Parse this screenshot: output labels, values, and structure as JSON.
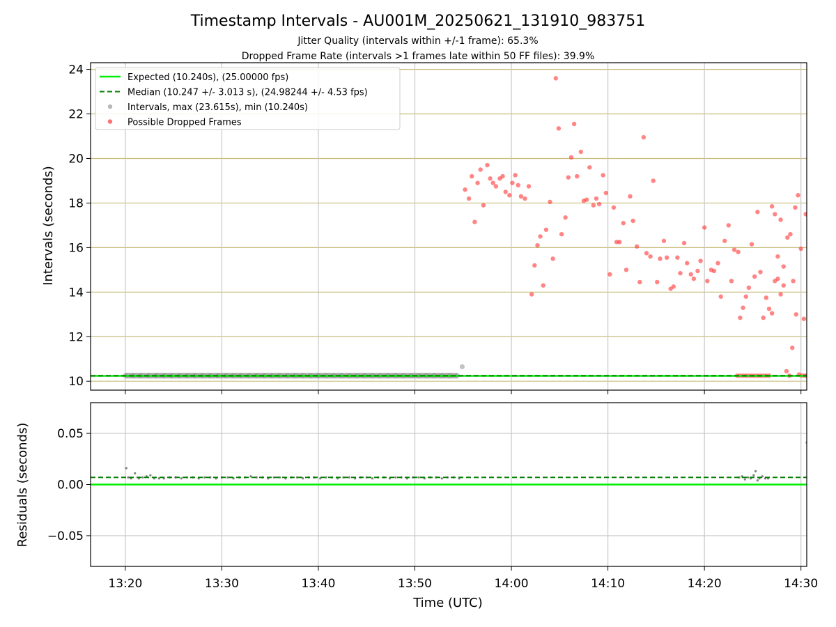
{
  "chart_data": {
    "type": "scatter",
    "title": "Timestamp Intervals - AU001M_20250621_131910_983751",
    "subtitle_lines": [
      "Jitter Quality (intervals within +/-1 frame): 65.3%",
      "Dropped Frame Rate (intervals >1 frames late within 50 FF files): 39.9%"
    ],
    "x_axis": {
      "label": "Time (UTC)",
      "unit": "minutes since 13:00 UTC",
      "range": [
        16.4,
        90.6
      ],
      "ticks": [
        {
          "value": 20,
          "label": "13:20"
        },
        {
          "value": 30,
          "label": "13:30"
        },
        {
          "value": 40,
          "label": "13:40"
        },
        {
          "value": 50,
          "label": "13:50"
        },
        {
          "value": 60,
          "label": "14:00"
        },
        {
          "value": 70,
          "label": "14:10"
        },
        {
          "value": 80,
          "label": "14:20"
        },
        {
          "value": 90,
          "label": "14:30"
        }
      ]
    },
    "panels": [
      {
        "name": "intervals",
        "ylabel": "Intervals (seconds)",
        "ylim": [
          9.6,
          24.3
        ],
        "yticks": [
          {
            "value": 10,
            "label": "10"
          },
          {
            "value": 12,
            "label": "12"
          },
          {
            "value": 14,
            "label": "14"
          },
          {
            "value": 16,
            "label": "16"
          },
          {
            "value": 18,
            "label": "18"
          },
          {
            "value": 20,
            "label": "20"
          },
          {
            "value": 22,
            "label": "22"
          },
          {
            "value": 24,
            "label": "24"
          }
        ],
        "grid": true,
        "grid_color": "#c8bd7a",
        "legend": {
          "placement": "top-left",
          "entries": [
            {
              "label": "Expected (10.240s), (25.00000 fps)",
              "style": "line",
              "color": "#00ee00"
            },
            {
              "label": "Median (10.247 +/- 3.013 s), (24.98244 +/- 4.53 fps)",
              "style": "dashed",
              "color": "#008000"
            },
            {
              "label": "Intervals, max (23.615s), min (10.240s)",
              "style": "dot",
              "color": "#999999"
            },
            {
              "label": "Possible Dropped Frames",
              "style": "dot",
              "color": "#ff3333"
            }
          ]
        },
        "expected_line": {
          "y": 10.24,
          "color": "#00ee00"
        },
        "median_line": {
          "y": 10.247,
          "color": "#008000"
        },
        "series": [
          {
            "name": "Intervals",
            "color": "#999999",
            "x": [
              20.0,
              20.8,
              21.6,
              22.4,
              23.2,
              24.0,
              24.8,
              25.6,
              26.4,
              27.2,
              28.0,
              28.8,
              29.6,
              30.4,
              31.2,
              32.0,
              32.8,
              33.6,
              34.4,
              35.2,
              36.0,
              36.8,
              37.6,
              38.4,
              39.2,
              40.0,
              40.8,
              41.6,
              42.4,
              43.2,
              44.0,
              44.8,
              45.6,
              46.4,
              47.2,
              48.0,
              48.8,
              49.6,
              50.4,
              51.2,
              52.0,
              52.8,
              53.6,
              54.4,
              54.9
            ],
            "y": [
              10.25,
              10.25,
              10.25,
              10.25,
              10.25,
              10.25,
              10.25,
              10.25,
              10.25,
              10.25,
              10.25,
              10.25,
              10.25,
              10.25,
              10.25,
              10.25,
              10.25,
              10.25,
              10.25,
              10.25,
              10.25,
              10.25,
              10.25,
              10.25,
              10.25,
              10.25,
              10.25,
              10.25,
              10.25,
              10.25,
              10.25,
              10.25,
              10.25,
              10.25,
              10.25,
              10.25,
              10.25,
              10.25,
              10.25,
              10.25,
              10.25,
              10.25,
              10.25,
              10.25,
              10.65
            ]
          },
          {
            "name": "Possible Dropped Frames",
            "color": "#ff3333",
            "x": [
              55.2,
              55.6,
              55.9,
              56.2,
              56.5,
              56.8,
              57.1,
              57.5,
              57.8,
              58.1,
              58.4,
              58.8,
              59.1,
              59.4,
              59.8,
              60.1,
              60.4,
              60.7,
              61.0,
              61.4,
              61.8,
              62.1,
              62.4,
              62.7,
              63.0,
              63.3,
              63.6,
              64.0,
              64.3,
              64.6,
              64.9,
              65.2,
              65.6,
              65.9,
              66.2,
              66.5,
              66.8,
              67.2,
              67.5,
              67.8,
              68.1,
              68.5,
              68.8,
              69.1,
              69.5,
              69.8,
              70.2,
              70.6,
              70.9,
              71.2,
              71.6,
              71.9,
              72.3,
              72.6,
              73.0,
              73.3,
              73.7,
              74.0,
              74.4,
              74.7,
              75.1,
              75.4,
              75.8,
              76.1,
              76.5,
              76.8,
              77.2,
              77.5,
              77.9,
              78.2,
              78.6,
              78.9,
              79.3,
              79.6,
              80.0,
              80.3,
              80.7,
              81.0,
              81.4,
              81.7,
              82.1,
              82.5,
              82.8,
              83.1,
              83.5,
              83.7,
              84.0,
              84.3,
              84.6,
              84.9,
              85.2,
              85.5,
              85.8,
              86.1,
              86.4,
              86.7,
              87.0,
              87.3,
              87.6,
              87.9,
              88.2,
              88.5,
              88.8,
              89.1,
              89.4,
              89.7,
              90.0,
              90.3,
              90.5
            ],
            "y": [
              18.6,
              18.2,
              19.2,
              17.15,
              18.9,
              19.5,
              17.9,
              19.7,
              19.1,
              18.9,
              18.75,
              19.1,
              19.2,
              18.5,
              18.35,
              18.9,
              19.25,
              18.8,
              18.3,
              18.2,
              18.75,
              13.9,
              15.2,
              16.1,
              16.5,
              14.3,
              16.8,
              18.05,
              15.5,
              23.6,
              21.35,
              16.6,
              17.35,
              19.15,
              20.05,
              21.55,
              19.2,
              20.3,
              18.1,
              18.15,
              19.6,
              17.9,
              18.2,
              17.95,
              19.25,
              18.45,
              14.8,
              17.8,
              16.25,
              16.25,
              17.1,
              15.0,
              18.3,
              17.2,
              16.05,
              14.45,
              20.95,
              15.75,
              15.6,
              19.0,
              14.45,
              15.5,
              16.3,
              15.55,
              14.15,
              14.25,
              15.55,
              14.85,
              16.2,
              15.3,
              14.8,
              14.6,
              14.95,
              15.4,
              16.9,
              14.5,
              15.0,
              14.95,
              15.3,
              13.8,
              16.3,
              17.0,
              14.5,
              15.9,
              15.8,
              12.85,
              13.3,
              13.8,
              14.2,
              16.15,
              14.7,
              17.6,
              14.9,
              12.85,
              13.75,
              13.25,
              13.05,
              14.5,
              15.6,
              17.25,
              14.3,
              10.45,
              10.25,
              11.5,
              17.8,
              18.35,
              15.95,
              12.8,
              17.5
            ]
          },
          {
            "name": "Possible Dropped Frames (cluster)",
            "color": "#ff3333",
            "x": [
              83.4,
              83.7,
              84.0,
              84.3,
              84.6,
              84.9,
              85.2,
              85.5,
              85.8,
              86.1,
              86.4,
              86.7,
              87.0,
              87.3,
              87.6,
              87.9,
              88.2,
              88.6,
              88.9,
              89.2,
              89.5,
              89.8,
              90.1,
              90.4,
              90.6
            ],
            "y": [
              10.25,
              10.25,
              10.25,
              10.25,
              10.25,
              10.25,
              10.25,
              10.25,
              10.25,
              10.25,
              10.25,
              10.25,
              17.85,
              17.5,
              14.6,
              13.9,
              15.15,
              16.45,
              16.6,
              14.5,
              13.0,
              10.3,
              10.25,
              10.25,
              10.25
            ]
          }
        ]
      },
      {
        "name": "residuals",
        "ylabel": "Residuals (seconds)",
        "ylim": [
          -0.08,
          0.08
        ],
        "yticks": [
          {
            "value": -0.05,
            "label": "−0.05"
          },
          {
            "value": 0.0,
            "label": "0.00"
          },
          {
            "value": 0.05,
            "label": "0.05"
          }
        ],
        "grid": true,
        "grid_color": "#c8c8c8",
        "expected_line": {
          "y": 0.0,
          "color": "#00ee00"
        },
        "median_line": {
          "y": 0.007,
          "color": "#008000"
        },
        "series": [
          {
            "name": "Residuals",
            "color": "#555555",
            "x": [
              20.1,
              20.3,
              20.6,
              21.0,
              21.4,
              21.8,
              22.2,
              22.6,
              23.0,
              23.5,
              24.0,
              24.6,
              25.2,
              25.8,
              26.4,
              27.0,
              27.6,
              28.2,
              28.8,
              29.4,
              30.0,
              30.6,
              31.2,
              31.8,
              32.4,
              33.0,
              33.6,
              34.2,
              34.8,
              35.4,
              36.0,
              36.6,
              37.2,
              37.8,
              38.4,
              39.0,
              39.6,
              40.2,
              40.8,
              41.4,
              42.0,
              42.6,
              43.2,
              43.8,
              44.4,
              45.0,
              45.6,
              46.2,
              46.8,
              47.4,
              48.0,
              48.6,
              49.2,
              49.8,
              50.4,
              51.0,
              51.6,
              52.2,
              52.8,
              53.4,
              54.0,
              54.6,
              83.6,
              83.9,
              84.2,
              84.5,
              84.8,
              85.1,
              85.3,
              85.5,
              85.7,
              86.0,
              86.3,
              86.6,
              90.6
            ],
            "y": [
              0.016,
              0.007,
              0.006,
              0.011,
              0.006,
              0.007,
              0.008,
              0.009,
              0.006,
              0.006,
              0.006,
              0.007,
              0.007,
              0.006,
              0.007,
              0.007,
              0.006,
              0.007,
              0.007,
              0.006,
              0.007,
              0.007,
              0.006,
              0.007,
              0.007,
              0.008,
              0.007,
              0.007,
              0.006,
              0.007,
              0.007,
              0.006,
              0.007,
              0.007,
              0.006,
              0.007,
              0.007,
              0.006,
              0.007,
              0.007,
              0.006,
              0.007,
              0.007,
              0.006,
              0.007,
              0.007,
              0.006,
              0.007,
              0.007,
              0.006,
              0.007,
              0.007,
              0.006,
              0.007,
              0.007,
              0.006,
              0.007,
              0.007,
              0.006,
              0.007,
              0.007,
              0.006,
              0.007,
              0.008,
              0.005,
              0.007,
              0.006,
              0.009,
              0.013,
              0.004,
              0.006,
              0.008,
              0.006,
              0.006,
              0.041
            ]
          }
        ]
      }
    ]
  }
}
